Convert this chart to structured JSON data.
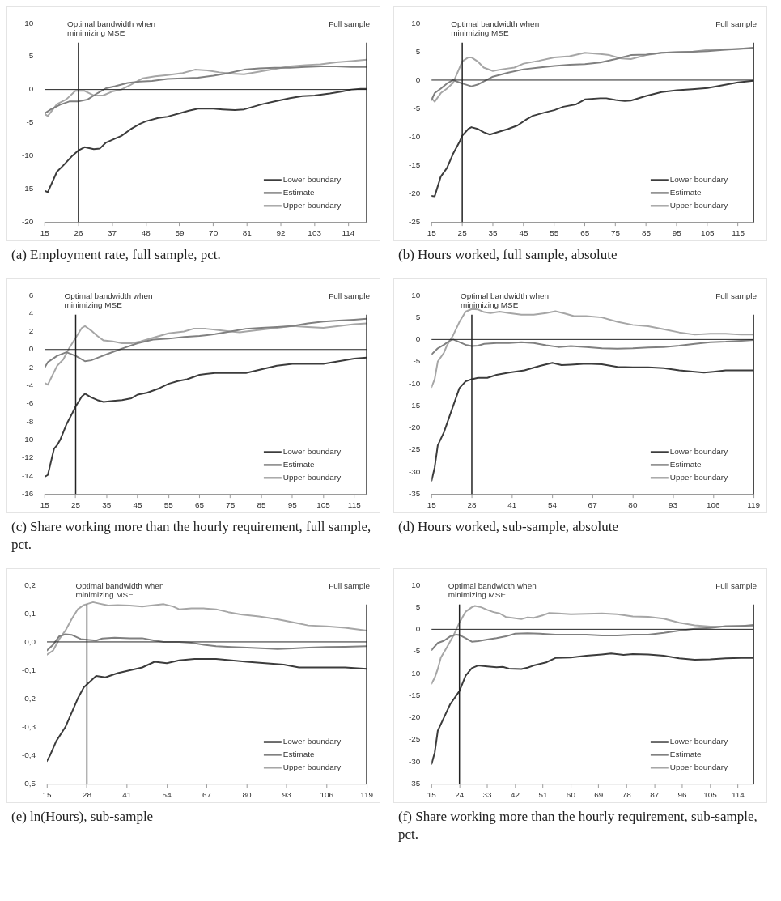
{
  "chart_data": [
    {
      "type": "line",
      "title": "(a) Employment rate, full sample, pct.",
      "xlim": [
        15,
        120
      ],
      "xticks": [
        15,
        26,
        37,
        48,
        59,
        70,
        81,
        92,
        103,
        114
      ],
      "ylim": [
        -20,
        10
      ],
      "yticks": [
        -20,
        -15,
        -10,
        -5,
        0,
        5,
        10
      ],
      "legend": "bottom right",
      "ref_lines": [
        {
          "axis": "y",
          "value": 0
        },
        {
          "axis": "x",
          "value": 26,
          "label": "Optimal bandwidth when minimizing MSE"
        },
        {
          "axis": "x",
          "value": 120,
          "label": "Full sample"
        }
      ],
      "series": [
        {
          "name": "Lower boundary",
          "color": "#3c3c3c",
          "x": [
            15,
            16,
            19,
            21,
            24,
            26,
            28,
            31,
            33,
            35,
            38,
            40,
            43,
            46,
            48,
            52,
            55,
            59,
            62,
            65,
            70,
            73,
            77,
            80,
            83,
            86,
            90,
            95,
            99,
            103,
            108,
            112,
            115,
            118,
            120
          ],
          "values": [
            -15.3,
            -15.5,
            -12.4,
            -11.5,
            -10,
            -9.2,
            -8.7,
            -9,
            -8.9,
            -8,
            -7.4,
            -7,
            -6,
            -5.2,
            -4.8,
            -4.3,
            -4.1,
            -3.6,
            -3.2,
            -2.9,
            -2.9,
            -3,
            -3.1,
            -3,
            -2.6,
            -2.2,
            -1.8,
            -1.3,
            -1,
            -0.9,
            -0.6,
            -0.3,
            0,
            0.1,
            0.1
          ]
        },
        {
          "name": "Estimate",
          "color": "#808080",
          "x": [
            15,
            17,
            20,
            23,
            26,
            29,
            32,
            35,
            38,
            42,
            46,
            50,
            55,
            60,
            65,
            70,
            75,
            80,
            85,
            90,
            95,
            100,
            105,
            110,
            115,
            120
          ],
          "values": [
            -3.6,
            -3,
            -2.3,
            -1.8,
            -1.8,
            -1.5,
            -0.6,
            0.2,
            0.5,
            1,
            1.2,
            1.3,
            1.6,
            1.7,
            1.8,
            2.1,
            2.5,
            3,
            3.2,
            3.3,
            3.3,
            3.4,
            3.5,
            3.5,
            3.4,
            3.4
          ]
        },
        {
          "name": "Upper boundary",
          "color": "#a6a6a6",
          "x": [
            15,
            16,
            19,
            22,
            25,
            28,
            31,
            34,
            37,
            40,
            43,
            47,
            51,
            55,
            60,
            64,
            68,
            72,
            76,
            80,
            85,
            90,
            95,
            100,
            105,
            110,
            115,
            120
          ],
          "values": [
            -3.7,
            -4,
            -2.2,
            -1.5,
            -0.2,
            -0.2,
            -0.9,
            -0.9,
            -0.3,
            0,
            0.7,
            1.7,
            2,
            2.2,
            2.5,
            3,
            2.9,
            2.6,
            2.4,
            2.3,
            2.7,
            3.1,
            3.5,
            3.7,
            3.8,
            4.1,
            4.3,
            4.5
          ]
        }
      ]
    },
    {
      "type": "line",
      "title": "(b) Hours worked, full sample, absolute",
      "xlim": [
        15,
        120
      ],
      "xticks": [
        15,
        25,
        35,
        45,
        55,
        65,
        75,
        85,
        95,
        105,
        115
      ],
      "ylim": [
        -25,
        10
      ],
      "yticks": [
        -25,
        -20,
        -15,
        -10,
        -5,
        0,
        5,
        10
      ],
      "legend": "bottom right",
      "ref_lines": [
        {
          "axis": "y",
          "value": 0
        },
        {
          "axis": "x",
          "value": 25,
          "label": "Optimal bandwidth when minimizing MSE"
        },
        {
          "axis": "x",
          "value": 120,
          "label": "Full sample"
        }
      ],
      "series": [
        {
          "name": "Lower boundary",
          "color": "#3c3c3c",
          "x": [
            15,
            16,
            18,
            20,
            22,
            24,
            25,
            27,
            28,
            30,
            32,
            34,
            37,
            40,
            43,
            46,
            48,
            52,
            55,
            58,
            62,
            65,
            70,
            72,
            75,
            78,
            80,
            85,
            90,
            95,
            100,
            105,
            110,
            115,
            120
          ],
          "values": [
            -20.4,
            -20.5,
            -17,
            -15.5,
            -13,
            -11,
            -9.8,
            -8.6,
            -8.3,
            -8.6,
            -9.2,
            -9.6,
            -9.1,
            -8.6,
            -8,
            -6.9,
            -6.3,
            -5.7,
            -5.3,
            -4.7,
            -4.3,
            -3.4,
            -3.2,
            -3.2,
            -3.5,
            -3.7,
            -3.6,
            -2.8,
            -2.1,
            -1.8,
            -1.6,
            -1.4,
            -0.9,
            -0.4,
            -0.1
          ]
        },
        {
          "name": "Estimate",
          "color": "#808080",
          "x": [
            15,
            16,
            18,
            20,
            22,
            25,
            28,
            30,
            35,
            40,
            45,
            50,
            55,
            60,
            65,
            70,
            75,
            80,
            85,
            90,
            95,
            100,
            105,
            110,
            115,
            120
          ],
          "values": [
            -3.5,
            -2.3,
            -1.5,
            -0.6,
            0,
            -0.6,
            -1.1,
            -0.8,
            0.6,
            1.3,
            1.9,
            2.2,
            2.5,
            2.7,
            2.8,
            3.1,
            3.7,
            4.4,
            4.5,
            4.8,
            4.9,
            5,
            5.1,
            5.3,
            5.5,
            5.7
          ]
        },
        {
          "name": "Upper boundary",
          "color": "#a6a6a6",
          "x": [
            15,
            16,
            18,
            20,
            22,
            24,
            25,
            27,
            28,
            30,
            32,
            35,
            38,
            42,
            45,
            50,
            55,
            60,
            65,
            70,
            73,
            77,
            80,
            85,
            90,
            95,
            100,
            105,
            110,
            115,
            120
          ],
          "values": [
            -3.2,
            -3.8,
            -2.3,
            -1.5,
            -0.5,
            2,
            3.3,
            4,
            4,
            3.3,
            2.2,
            1.6,
            1.9,
            2.2,
            2.9,
            3.4,
            4,
            4.2,
            4.8,
            4.6,
            4.4,
            3.8,
            3.7,
            4.4,
            4.8,
            4.9,
            5,
            5.3,
            5.4,
            5.5,
            5.6
          ]
        }
      ]
    },
    {
      "type": "line",
      "title": "(c) Share working more than the hourly requirement, full sample, pct.",
      "xlim": [
        15,
        119
      ],
      "xticks": [
        15,
        25,
        35,
        45,
        55,
        65,
        75,
        85,
        95,
        105,
        115
      ],
      "ylim": [
        -16,
        6
      ],
      "yticks": [
        -16,
        -14,
        -12,
        -10,
        -8,
        -6,
        -4,
        -2,
        0,
        2,
        4,
        6
      ],
      "legend": "bottom right",
      "ref_lines": [
        {
          "axis": "y",
          "value": 0
        },
        {
          "axis": "x",
          "value": 25,
          "label": "Optimal bandwidth when minimizing MSE"
        },
        {
          "axis": "x",
          "value": 119,
          "label": "Full sample"
        }
      ],
      "series": [
        {
          "name": "Lower boundary",
          "color": "#3c3c3c",
          "x": [
            15,
            16,
            18,
            19,
            20,
            22,
            24,
            25,
            27,
            28,
            30,
            32,
            34,
            37,
            40,
            43,
            45,
            48,
            52,
            55,
            58,
            61,
            65,
            70,
            75,
            80,
            85,
            90,
            95,
            100,
            105,
            110,
            115,
            119
          ],
          "values": [
            -14.1,
            -13.9,
            -11,
            -10.6,
            -10,
            -8.3,
            -7,
            -6.3,
            -5.2,
            -4.9,
            -5.3,
            -5.6,
            -5.8,
            -5.7,
            -5.6,
            -5.4,
            -5,
            -4.8,
            -4.3,
            -3.8,
            -3.5,
            -3.3,
            -2.8,
            -2.6,
            -2.6,
            -2.6,
            -2.2,
            -1.8,
            -1.6,
            -1.6,
            -1.6,
            -1.3,
            -1,
            -0.9
          ]
        },
        {
          "name": "Estimate",
          "color": "#808080",
          "x": [
            15,
            16,
            19,
            22,
            25,
            28,
            30,
            33,
            36,
            40,
            45,
            50,
            55,
            60,
            65,
            70,
            75,
            80,
            85,
            90,
            95,
            100,
            105,
            110,
            115,
            119
          ],
          "values": [
            -2,
            -1.4,
            -0.7,
            -0.3,
            -0.7,
            -1.3,
            -1.2,
            -0.8,
            -0.4,
            0.1,
            0.7,
            1.1,
            1.2,
            1.4,
            1.5,
            1.7,
            2,
            2.3,
            2.4,
            2.5,
            2.6,
            2.9,
            3.1,
            3.2,
            3.3,
            3.4
          ]
        },
        {
          "name": "Upper boundary",
          "color": "#a6a6a6",
          "x": [
            15,
            16,
            18,
            19,
            21,
            23,
            25,
            27,
            28,
            30,
            32,
            34,
            37,
            40,
            43,
            46,
            50,
            55,
            60,
            63,
            67,
            70,
            75,
            78,
            80,
            85,
            90,
            95,
            100,
            105,
            110,
            115,
            119
          ],
          "values": [
            -3.7,
            -3.9,
            -2.5,
            -1.8,
            -1.1,
            0.2,
            1.3,
            2.4,
            2.6,
            2.1,
            1.5,
            1,
            0.9,
            0.7,
            0.7,
            0.9,
            1.3,
            1.8,
            2,
            2.3,
            2.3,
            2.2,
            2,
            1.9,
            2,
            2.2,
            2.4,
            2.6,
            2.5,
            2.4,
            2.6,
            2.8,
            2.9
          ]
        }
      ]
    },
    {
      "type": "line",
      "title": "(d) Hours worked, sub-sample, absolute",
      "xlim": [
        15,
        119
      ],
      "xticks": [
        15,
        28,
        41,
        54,
        67,
        80,
        93,
        106,
        119
      ],
      "ylim": [
        -35,
        10
      ],
      "yticks": [
        -35,
        -30,
        -25,
        -20,
        -15,
        -10,
        -5,
        0,
        5,
        10
      ],
      "legend": "bottom right",
      "ref_lines": [
        {
          "axis": "y",
          "value": 0
        },
        {
          "axis": "x",
          "value": 28,
          "label": "Optimal bandwidth when minimizing MSE"
        },
        {
          "axis": "x",
          "value": 119,
          "label": "Full sample"
        }
      ],
      "series": [
        {
          "name": "Lower boundary",
          "color": "#3c3c3c",
          "x": [
            15,
            16,
            17,
            19,
            20,
            22,
            24,
            26,
            28,
            30,
            33,
            36,
            40,
            45,
            50,
            54,
            57,
            60,
            65,
            70,
            75,
            80,
            85,
            90,
            95,
            100,
            103,
            106,
            110,
            115,
            119
          ],
          "values": [
            -32,
            -29,
            -24,
            -21,
            -19,
            -15,
            -11,
            -9.5,
            -9,
            -8.7,
            -8.7,
            -8,
            -7.5,
            -7,
            -6,
            -5.3,
            -5.8,
            -5.7,
            -5.5,
            -5.6,
            -6.2,
            -6.3,
            -6.3,
            -6.5,
            -7,
            -7.3,
            -7.5,
            -7.3,
            -7,
            -7,
            -7
          ]
        },
        {
          "name": "Estimate",
          "color": "#808080",
          "x": [
            15,
            17,
            19,
            21,
            22,
            24,
            26,
            28,
            30,
            32,
            36,
            40,
            44,
            48,
            52,
            56,
            60,
            65,
            70,
            75,
            80,
            85,
            90,
            95,
            100,
            105,
            110,
            115,
            119
          ],
          "values": [
            -3.4,
            -2,
            -1.2,
            -0.2,
            0,
            -0.6,
            -1.2,
            -1.5,
            -1.4,
            -1,
            -0.8,
            -0.8,
            -0.6,
            -0.8,
            -1.3,
            -1.7,
            -1.5,
            -1.7,
            -2,
            -2.1,
            -2,
            -1.8,
            -1.7,
            -1.4,
            -1,
            -0.6,
            -0.5,
            -0.3,
            -0.1
          ]
        },
        {
          "name": "Upper boundary",
          "color": "#a6a6a6",
          "x": [
            15,
            16,
            17,
            19,
            20,
            22,
            24,
            26,
            28,
            30,
            32,
            34,
            37,
            40,
            44,
            48,
            52,
            55,
            58,
            61,
            65,
            70,
            75,
            80,
            85,
            90,
            95,
            100,
            105,
            110,
            115,
            119
          ],
          "values": [
            -10.8,
            -9,
            -5,
            -3,
            -1.3,
            1,
            4,
            6.3,
            6.9,
            6.8,
            6.2,
            6,
            6.3,
            6,
            5.6,
            5.6,
            6,
            6.4,
            5.9,
            5.3,
            5.3,
            5,
            4,
            3.3,
            3,
            2.3,
            1.6,
            1.1,
            1.3,
            1.3,
            1.1,
            1.1
          ]
        }
      ]
    },
    {
      "type": "line",
      "title": "(e) ln(Hours), sub-sample",
      "xlim": [
        15,
        119
      ],
      "xticks": [
        15,
        28,
        41,
        54,
        67,
        80,
        93,
        106,
        119
      ],
      "ylim": [
        -0.5,
        0.2
      ],
      "yticks": [
        {
          "value": -0.5,
          "label": "-0,5"
        },
        {
          "value": -0.4,
          "label": "-0,4"
        },
        {
          "value": -0.3,
          "label": "-0,3"
        },
        {
          "value": -0.2,
          "label": "-0,2"
        },
        {
          "value": -0.1,
          "label": "-0,1"
        },
        {
          "value": 0,
          "label": "0,0"
        },
        {
          "value": 0.1,
          "label": "0,1"
        },
        {
          "value": 0.2,
          "label": "0,2"
        }
      ],
      "legend": "bottom right",
      "ref_lines": [
        {
          "axis": "y",
          "value": 0
        },
        {
          "axis": "x",
          "value": 28,
          "label": "Optimal bandwidth when minimizing MSE"
        },
        {
          "axis": "x",
          "value": 119,
          "label": "Full sample"
        }
      ],
      "series": [
        {
          "name": "Lower boundary",
          "color": "#3c3c3c",
          "x": [
            15,
            16,
            18,
            21,
            23,
            25,
            27,
            29,
            31,
            34,
            38,
            42,
            46,
            50,
            54,
            58,
            63,
            70,
            75,
            80,
            86,
            92,
            97,
            106,
            112,
            119
          ],
          "values": [
            -0.42,
            -0.4,
            -0.35,
            -0.3,
            -0.25,
            -0.2,
            -0.16,
            -0.14,
            -0.12,
            -0.125,
            -0.11,
            -0.1,
            -0.09,
            -0.07,
            -0.075,
            -0.065,
            -0.06,
            -0.06,
            -0.065,
            -0.07,
            -0.075,
            -0.08,
            -0.09,
            -0.09,
            -0.09,
            -0.095
          ]
        },
        {
          "name": "Estimate",
          "color": "#808080",
          "x": [
            15,
            17,
            19,
            21,
            23,
            26,
            28,
            31,
            33,
            37,
            42,
            46,
            50,
            53,
            58,
            62,
            66,
            70,
            75,
            80,
            86,
            90,
            95,
            100,
            106,
            112,
            119
          ],
          "values": [
            -0.03,
            -0.01,
            0.02,
            0.027,
            0.025,
            0.01,
            0.008,
            0.005,
            0.012,
            0.015,
            0.013,
            0.013,
            0.005,
            0,
            0,
            -0.003,
            -0.01,
            -0.015,
            -0.018,
            -0.02,
            -0.023,
            -0.025,
            -0.023,
            -0.02,
            -0.018,
            -0.017,
            -0.015
          ]
        },
        {
          "name": "Upper boundary",
          "color": "#a6a6a6",
          "x": [
            15,
            17,
            19,
            21,
            23,
            25,
            27,
            30,
            32,
            35,
            38,
            42,
            46,
            50,
            53,
            56,
            58,
            62,
            66,
            70,
            74,
            78,
            84,
            90,
            96,
            100,
            106,
            112,
            119
          ],
          "values": [
            -0.045,
            -0.03,
            0.01,
            0.04,
            0.08,
            0.115,
            0.13,
            0.14,
            0.135,
            0.128,
            0.13,
            0.128,
            0.125,
            0.13,
            0.133,
            0.125,
            0.115,
            0.118,
            0.118,
            0.115,
            0.105,
            0.097,
            0.09,
            0.08,
            0.067,
            0.058,
            0.055,
            0.05,
            0.04
          ]
        }
      ]
    },
    {
      "type": "line",
      "title": "(f) Share working more than the hourly requirement, sub-sample, pct.",
      "xlim": [
        15,
        119
      ],
      "xticks": [
        15,
        24,
        33,
        42,
        51,
        60,
        69,
        78,
        87,
        96,
        105,
        114
      ],
      "ylim": [
        -35,
        10
      ],
      "yticks": [
        -35,
        -30,
        -25,
        -20,
        -15,
        -10,
        -5,
        0,
        5,
        10
      ],
      "legend": "bottom right",
      "ref_lines": [
        {
          "axis": "y",
          "value": 0
        },
        {
          "axis": "x",
          "value": 24,
          "label": "Optimal bandwidth when minimizing MSE"
        },
        {
          "axis": "x",
          "value": 119,
          "label": "Full sample"
        }
      ],
      "series": [
        {
          "name": "Lower boundary",
          "color": "#3c3c3c",
          "x": [
            15,
            16,
            17,
            19,
            21,
            23,
            24,
            26,
            28,
            30,
            33,
            36,
            38,
            40,
            44,
            46,
            48,
            52,
            55,
            60,
            65,
            70,
            73,
            77,
            80,
            85,
            90,
            95,
            100,
            105,
            110,
            115,
            119
          ],
          "values": [
            -30.5,
            -28,
            -23,
            -20,
            -17,
            -15,
            -14,
            -10.5,
            -8.8,
            -8.2,
            -8.4,
            -8.6,
            -8.5,
            -8.9,
            -9,
            -8.7,
            -8.2,
            -7.5,
            -6.5,
            -6.4,
            -6,
            -5.7,
            -5.5,
            -5.8,
            -5.6,
            -5.7,
            -6,
            -6.6,
            -6.9,
            -6.8,
            -6.6,
            -6.5,
            -6.5
          ]
        },
        {
          "name": "Estimate",
          "color": "#808080",
          "x": [
            15,
            17,
            19,
            21,
            23,
            24,
            26,
            28,
            30,
            33,
            36,
            39,
            42,
            46,
            50,
            55,
            60,
            65,
            70,
            75,
            80,
            85,
            90,
            95,
            100,
            105,
            110,
            115,
            119
          ],
          "values": [
            -4.7,
            -3.1,
            -2.6,
            -1.6,
            -1.2,
            -1.3,
            -2,
            -2.8,
            -2.7,
            -2.3,
            -2,
            -1.6,
            -1,
            -0.9,
            -1,
            -1.2,
            -1.2,
            -1.2,
            -1.4,
            -1.4,
            -1.2,
            -1.2,
            -0.8,
            -0.3,
            0.1,
            0.3,
            0.7,
            0.7,
            1
          ]
        },
        {
          "name": "Upper boundary",
          "color": "#a6a6a6",
          "x": [
            15,
            16,
            17,
            18,
            20,
            22,
            24,
            26,
            28,
            29,
            31,
            33,
            35,
            37,
            39,
            42,
            44,
            46,
            48,
            51,
            53,
            56,
            60,
            65,
            70,
            75,
            80,
            85,
            90,
            95,
            100,
            105,
            110,
            115,
            119
          ],
          "values": [
            -12.3,
            -11,
            -9,
            -6.4,
            -4,
            -1.5,
            1.5,
            4,
            5,
            5.3,
            5,
            4.4,
            3.9,
            3.6,
            2.8,
            2.5,
            2.3,
            2.7,
            2.6,
            3.2,
            3.7,
            3.6,
            3.4,
            3.5,
            3.6,
            3.4,
            2.9,
            2.8,
            2.4,
            1.5,
            0.9,
            0.6,
            0.6,
            0.8,
            0.8
          ]
        }
      ]
    }
  ]
}
